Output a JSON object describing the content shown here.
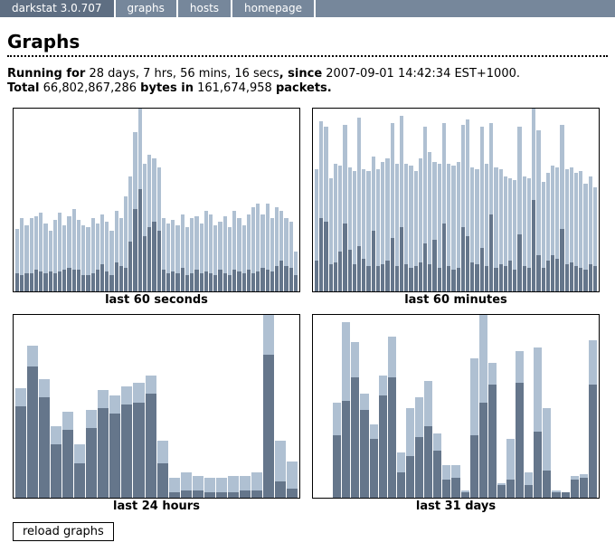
{
  "nav": {
    "brand": "darkstat 3.0.707",
    "items": [
      {
        "label": "graphs"
      },
      {
        "label": "hosts"
      },
      {
        "label": "homepage"
      }
    ]
  },
  "header": {
    "title": "Graphs"
  },
  "stats": {
    "running_for_label": "Running for",
    "running_duration": " 28 days, 7 hrs, 56 mins, 16 secs",
    "since_label": ", since",
    "since_value": " 2007-09-01 14:42:34 EST+1000.",
    "total_label": "Total",
    "bytes_value": " 66,802,867,286 ",
    "bytes_label": "bytes in",
    "packets_value": " 161,674,958 ",
    "packets_label": "packets."
  },
  "colors": {
    "nav_bg": "#76879b",
    "nav_brand_bg": "#5e6e82",
    "bar_light": "#afc0d2",
    "bar_dark": "#65768b",
    "chart_border": "#000000"
  },
  "reload_button_label": "reload graphs",
  "chart_data": [
    {
      "type": "bar",
      "caption": "last 60 seconds",
      "stacking": "total_percent_and_dark_percent_of_full_height",
      "legend": [
        "light = total traffic",
        "dark = lower stacked segment"
      ],
      "bars": [
        [
          34,
          10
        ],
        [
          40,
          9
        ],
        [
          36,
          10
        ],
        [
          40,
          10
        ],
        [
          41,
          12
        ],
        [
          43,
          11
        ],
        [
          37,
          10
        ],
        [
          33,
          11
        ],
        [
          39,
          10
        ],
        [
          43,
          11
        ],
        [
          36,
          12
        ],
        [
          41,
          13
        ],
        [
          45,
          12
        ],
        [
          39,
          12
        ],
        [
          36,
          9
        ],
        [
          35,
          9
        ],
        [
          40,
          10
        ],
        [
          37,
          12
        ],
        [
          42,
          15
        ],
        [
          38,
          11
        ],
        [
          33,
          9
        ],
        [
          44,
          16
        ],
        [
          40,
          14
        ],
        [
          52,
          13
        ],
        [
          63,
          27
        ],
        [
          87,
          45
        ],
        [
          100,
          56
        ],
        [
          70,
          30
        ],
        [
          75,
          35
        ],
        [
          73,
          38
        ],
        [
          68,
          33
        ],
        [
          40,
          12
        ],
        [
          37,
          10
        ],
        [
          39,
          11
        ],
        [
          36,
          10
        ],
        [
          42,
          13
        ],
        [
          35,
          9
        ],
        [
          40,
          10
        ],
        [
          41,
          12
        ],
        [
          37,
          10
        ],
        [
          44,
          11
        ],
        [
          42,
          10
        ],
        [
          36,
          9
        ],
        [
          38,
          12
        ],
        [
          41,
          10
        ],
        [
          35,
          9
        ],
        [
          44,
          12
        ],
        [
          40,
          11
        ],
        [
          36,
          10
        ],
        [
          42,
          12
        ],
        [
          46,
          10
        ],
        [
          48,
          11
        ],
        [
          42,
          13
        ],
        [
          48,
          12
        ],
        [
          40,
          11
        ],
        [
          46,
          14
        ],
        [
          44,
          17
        ],
        [
          40,
          14
        ],
        [
          38,
          13
        ],
        [
          22,
          9
        ]
      ]
    },
    {
      "type": "bar",
      "caption": "last 60 minutes",
      "stacking": "total_percent_and_dark_percent_of_full_height",
      "bars": [
        [
          67,
          17
        ],
        [
          93,
          40
        ],
        [
          90,
          38
        ],
        [
          62,
          15
        ],
        [
          70,
          16
        ],
        [
          69,
          22
        ],
        [
          91,
          37
        ],
        [
          68,
          23
        ],
        [
          66,
          15
        ],
        [
          95,
          25
        ],
        [
          67,
          18
        ],
        [
          66,
          14
        ],
        [
          74,
          33
        ],
        [
          67,
          14
        ],
        [
          71,
          15
        ],
        [
          73,
          17
        ],
        [
          92,
          29
        ],
        [
          70,
          14
        ],
        [
          96,
          35
        ],
        [
          70,
          15
        ],
        [
          69,
          13
        ],
        [
          66,
          14
        ],
        [
          73,
          16
        ],
        [
          90,
          26
        ],
        [
          76,
          15
        ],
        [
          71,
          28
        ],
        [
          70,
          13
        ],
        [
          92,
          37
        ],
        [
          70,
          14
        ],
        [
          69,
          12
        ],
        [
          71,
          13
        ],
        [
          91,
          35
        ],
        [
          94,
          30
        ],
        [
          68,
          16
        ],
        [
          67,
          15
        ],
        [
          90,
          24
        ],
        [
          70,
          14
        ],
        [
          92,
          42
        ],
        [
          68,
          13
        ],
        [
          67,
          15
        ],
        [
          63,
          14
        ],
        [
          62,
          17
        ],
        [
          61,
          12
        ],
        [
          90,
          31
        ],
        [
          63,
          14
        ],
        [
          62,
          13
        ],
        [
          100,
          50
        ],
        [
          88,
          20
        ],
        [
          60,
          13
        ],
        [
          65,
          17
        ],
        [
          69,
          20
        ],
        [
          68,
          18
        ],
        [
          91,
          34
        ],
        [
          67,
          15
        ],
        [
          68,
          16
        ],
        [
          65,
          14
        ],
        [
          66,
          13
        ],
        [
          59,
          12
        ],
        [
          63,
          15
        ],
        [
          57,
          14
        ]
      ]
    },
    {
      "type": "bar",
      "caption": "last 24 hours",
      "stacking": "total_percent_and_dark_percent_of_full_height",
      "bars": [
        [
          60,
          50
        ],
        [
          83,
          72
        ],
        [
          65,
          55
        ],
        [
          39,
          29
        ],
        [
          47,
          37
        ],
        [
          29,
          19
        ],
        [
          48,
          38
        ],
        [
          59,
          49
        ],
        [
          56,
          46
        ],
        [
          61,
          51
        ],
        [
          63,
          52
        ],
        [
          67,
          57
        ],
        [
          31,
          19
        ],
        [
          11,
          3
        ],
        [
          14,
          4
        ],
        [
          12,
          4
        ],
        [
          11,
          3
        ],
        [
          11,
          3
        ],
        [
          12,
          3
        ],
        [
          12,
          4
        ],
        [
          14,
          4
        ],
        [
          100,
          78
        ],
        [
          31,
          9
        ],
        [
          20,
          5
        ]
      ]
    },
    {
      "type": "bar",
      "caption": "last 31 days",
      "stacking": "total_percent_and_dark_percent_of_full_height",
      "bars": [
        [
          0,
          0
        ],
        [
          0,
          0
        ],
        [
          52,
          34
        ],
        [
          96,
          53
        ],
        [
          85,
          66
        ],
        [
          57,
          48
        ],
        [
          40,
          32
        ],
        [
          67,
          56
        ],
        [
          88,
          66
        ],
        [
          25,
          14
        ],
        [
          49,
          23
        ],
        [
          55,
          33
        ],
        [
          64,
          39
        ],
        [
          35,
          26
        ],
        [
          18,
          10
        ],
        [
          18,
          11
        ],
        [
          4,
          3
        ],
        [
          76,
          34
        ],
        [
          100,
          52
        ],
        [
          74,
          62
        ],
        [
          8,
          7
        ],
        [
          32,
          10
        ],
        [
          80,
          63
        ],
        [
          14,
          7
        ],
        [
          82,
          36
        ],
        [
          49,
          15
        ],
        [
          4,
          3
        ],
        [
          3,
          3
        ],
        [
          12,
          10
        ],
        [
          13,
          11
        ],
        [
          86,
          62
        ]
      ]
    }
  ]
}
